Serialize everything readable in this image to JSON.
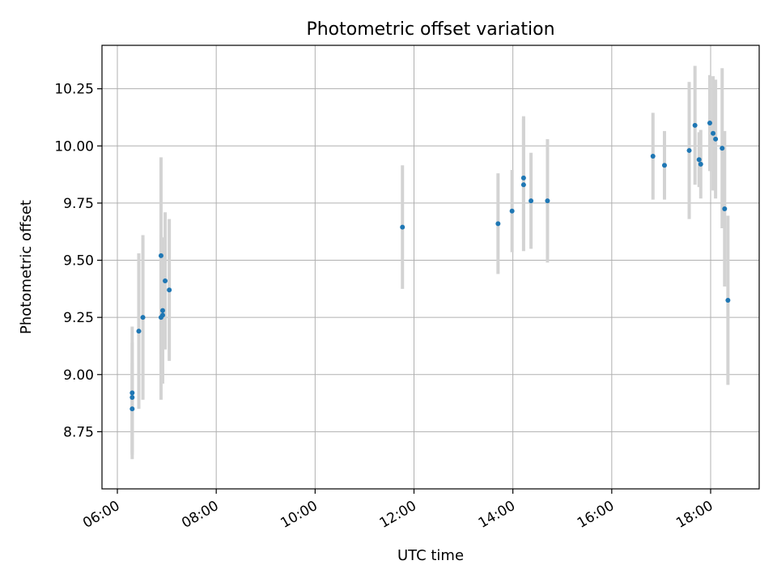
{
  "chart_data": {
    "type": "scatter",
    "title": "Photometric offset variation",
    "xlabel": "UTC time",
    "ylabel": "Photometric offset",
    "x_is_time": true,
    "xlim": [
      "06:00",
      "19:05"
    ],
    "ylim": [
      8.5,
      10.44
    ],
    "x_ticks": [
      "06:00",
      "08:00",
      "10:00",
      "12:00",
      "14:00",
      "16:00",
      "18:00"
    ],
    "y_ticks": [
      "8.75",
      "9.00",
      "9.25",
      "9.50",
      "9.75",
      "10.00",
      "10.25"
    ],
    "grid": true,
    "colors": {
      "points": "#1f77b4",
      "errorbars": "#d3d3d3",
      "grid": "#b0b0b0"
    },
    "series": [
      {
        "points": [
          {
            "x": "06:18",
            "y": 8.92,
            "err": 0.29
          },
          {
            "x": "06:18",
            "y": 8.9,
            "err": 0.24
          },
          {
            "x": "06:18",
            "y": 8.85,
            "err": 0.2
          },
          {
            "x": "06:26",
            "y": 9.19,
            "err": 0.34
          },
          {
            "x": "06:31",
            "y": 9.25,
            "err": 0.36
          },
          {
            "x": "06:53",
            "y": 9.25,
            "err": 0.36
          },
          {
            "x": "06:53",
            "y": 9.52,
            "err": 0.43
          },
          {
            "x": "06:55",
            "y": 9.28,
            "err": 0.32
          },
          {
            "x": "06:55",
            "y": 9.26,
            "err": 0.29
          },
          {
            "x": "06:58",
            "y": 9.41,
            "err": 0.3
          },
          {
            "x": "07:03",
            "y": 9.37,
            "err": 0.31
          },
          {
            "x": "11:46",
            "y": 9.645,
            "err": 0.27
          },
          {
            "x": "13:42",
            "y": 9.66,
            "err": 0.22
          },
          {
            "x": "13:59",
            "y": 9.715,
            "err": 0.18
          },
          {
            "x": "14:13",
            "y": 9.86,
            "err": 0.27
          },
          {
            "x": "14:13",
            "y": 9.83,
            "err": 0.29
          },
          {
            "x": "14:22",
            "y": 9.76,
            "err": 0.21
          },
          {
            "x": "14:42",
            "y": 9.76,
            "err": 0.27
          },
          {
            "x": "16:50",
            "y": 9.955,
            "err": 0.19
          },
          {
            "x": "17:04",
            "y": 9.915,
            "err": 0.15
          },
          {
            "x": "17:34",
            "y": 9.98,
            "err": 0.3
          },
          {
            "x": "17:41",
            "y": 10.09,
            "err": 0.26
          },
          {
            "x": "17:46",
            "y": 9.94,
            "err": 0.12
          },
          {
            "x": "17:48",
            "y": 9.92,
            "err": 0.15
          },
          {
            "x": "17:59",
            "y": 10.1,
            "err": 0.21
          },
          {
            "x": "18:03",
            "y": 10.055,
            "err": 0.25
          },
          {
            "x": "18:06",
            "y": 10.03,
            "err": 0.26
          },
          {
            "x": "18:14",
            "y": 9.99,
            "err": 0.35
          },
          {
            "x": "18:17",
            "y": 9.725,
            "err": 0.34
          },
          {
            "x": "18:21",
            "y": 9.325,
            "err": 0.37
          }
        ]
      }
    ]
  }
}
